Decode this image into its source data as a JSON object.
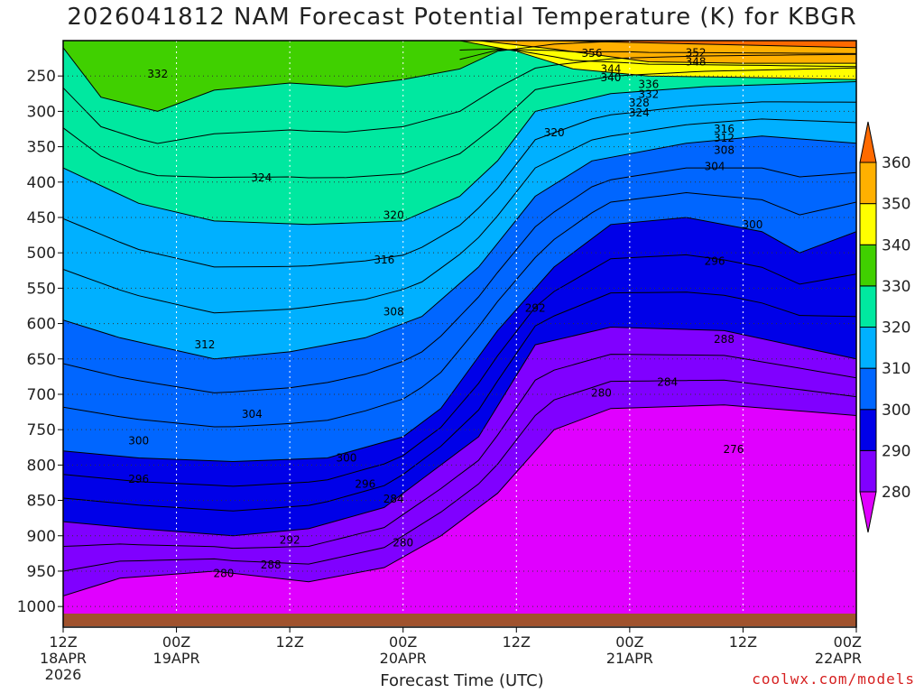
{
  "chart_data": {
    "type": "heatmap",
    "title": "2026041812 NAM Forecast Potential Temperature (K) for KBGR",
    "xlabel": "Forecast Time (UTC)",
    "ylabel": "",
    "x_ticks": [
      {
        "lines": [
          "12Z",
          "18APR",
          "2026"
        ]
      },
      {
        "lines": [
          "00Z",
          "19APR"
        ]
      },
      {
        "lines": [
          "12Z"
        ]
      },
      {
        "lines": [
          "00Z",
          "20APR"
        ]
      },
      {
        "lines": [
          "12Z"
        ]
      },
      {
        "lines": [
          "00Z",
          "21APR"
        ]
      },
      {
        "lines": [
          "12Z"
        ]
      },
      {
        "lines": [
          "00Z",
          "22APR"
        ]
      }
    ],
    "x_hours": [
      0,
      12,
      24,
      36,
      48,
      60,
      72,
      84
    ],
    "y_ticks": [
      250,
      300,
      350,
      400,
      450,
      500,
      550,
      600,
      650,
      700,
      750,
      800,
      850,
      900,
      950,
      1000
    ],
    "ylim": [
      1010,
      200
    ],
    "xlim_hours": [
      0,
      84
    ],
    "grid": true,
    "colorbar": {
      "levels": [
        280,
        290,
        300,
        310,
        320,
        330,
        340,
        350,
        360
      ],
      "colors": [
        "#e000ff",
        "#8000ff",
        "#0000e8",
        "#0066ff",
        "#00b0ff",
        "#00e8a0",
        "#40d000",
        "#ffff00",
        "#ffb000",
        "#ff6a00"
      ],
      "labels": [
        "280",
        "290",
        "300",
        "310",
        "320",
        "330",
        "340",
        "350",
        "360"
      ]
    },
    "isotherm_boundaries": [
      {
        "theta": 280,
        "points": [
          [
            0,
            985
          ],
          [
            6,
            960
          ],
          [
            16,
            950
          ],
          [
            26,
            965
          ],
          [
            34,
            945
          ],
          [
            36,
            930
          ],
          [
            40,
            900
          ],
          [
            46,
            840
          ],
          [
            52,
            750
          ],
          [
            58,
            720
          ],
          [
            70,
            715
          ],
          [
            84,
            730
          ]
        ]
      },
      {
        "theta": 290,
        "points": [
          [
            0,
            880
          ],
          [
            8,
            890
          ],
          [
            18,
            900
          ],
          [
            26,
            890
          ],
          [
            34,
            860
          ],
          [
            38,
            820
          ],
          [
            44,
            760
          ],
          [
            50,
            630
          ],
          [
            58,
            605
          ],
          [
            70,
            610
          ],
          [
            84,
            650
          ]
        ]
      },
      {
        "theta": 300,
        "points": [
          [
            0,
            780
          ],
          [
            8,
            790
          ],
          [
            18,
            795
          ],
          [
            28,
            790
          ],
          [
            36,
            760
          ],
          [
            40,
            720
          ],
          [
            46,
            610
          ],
          [
            52,
            520
          ],
          [
            58,
            460
          ],
          [
            66,
            450
          ],
          [
            74,
            470
          ],
          [
            78,
            500
          ],
          [
            84,
            470
          ]
        ]
      },
      {
        "theta": 310,
        "points": [
          [
            0,
            595
          ],
          [
            6,
            620
          ],
          [
            16,
            650
          ],
          [
            24,
            640
          ],
          [
            32,
            620
          ],
          [
            38,
            590
          ],
          [
            44,
            520
          ],
          [
            50,
            420
          ],
          [
            56,
            370
          ],
          [
            66,
            345
          ],
          [
            74,
            335
          ],
          [
            84,
            345
          ]
        ]
      },
      {
        "theta": 320,
        "points": [
          [
            0,
            380
          ],
          [
            8,
            430
          ],
          [
            16,
            455
          ],
          [
            26,
            460
          ],
          [
            36,
            455
          ],
          [
            42,
            420
          ],
          [
            46,
            370
          ],
          [
            50,
            300
          ],
          [
            58,
            275
          ],
          [
            68,
            265
          ],
          [
            84,
            258
          ]
        ]
      },
      {
        "theta": 330,
        "points": [
          [
            0,
            210
          ],
          [
            4,
            280
          ],
          [
            10,
            300
          ],
          [
            16,
            270
          ],
          [
            24,
            260
          ],
          [
            30,
            265
          ],
          [
            36,
            255
          ],
          [
            42,
            240
          ],
          [
            46,
            215
          ],
          [
            52,
            205
          ],
          [
            60,
            200
          ],
          [
            84,
            200
          ]
        ]
      },
      {
        "theta": 340,
        "points": [
          [
            42,
            200
          ],
          [
            48,
            215
          ],
          [
            54,
            240
          ],
          [
            62,
            250
          ],
          [
            72,
            252
          ],
          [
            84,
            255
          ]
        ]
      },
      {
        "theta": 350,
        "points": [
          [
            44,
            200
          ],
          [
            52,
            212
          ],
          [
            62,
            230
          ],
          [
            72,
            232
          ],
          [
            84,
            232
          ]
        ]
      },
      {
        "theta": 360,
        "points": [
          [
            52,
            200
          ],
          [
            84,
            210
          ]
        ]
      }
    ],
    "contour_labels": [
      {
        "text": "356",
        "hour": 56,
        "p": 218
      },
      {
        "text": "352",
        "hour": 67,
        "p": 217
      },
      {
        "text": "348",
        "hour": 67,
        "p": 230
      },
      {
        "text": "344",
        "hour": 58,
        "p": 240
      },
      {
        "text": "340",
        "hour": 58,
        "p": 252
      },
      {
        "text": "336",
        "hour": 62,
        "p": 262
      },
      {
        "text": "332",
        "hour": 62,
        "p": 276
      },
      {
        "text": "328",
        "hour": 61,
        "p": 288
      },
      {
        "text": "324",
        "hour": 61,
        "p": 302
      },
      {
        "text": "332",
        "hour": 10,
        "p": 247
      },
      {
        "text": "320",
        "hour": 52,
        "p": 330
      },
      {
        "text": "316",
        "hour": 70,
        "p": 325
      },
      {
        "text": "312",
        "hour": 70,
        "p": 338
      },
      {
        "text": "308",
        "hour": 70,
        "p": 355
      },
      {
        "text": "304",
        "hour": 69,
        "p": 378
      },
      {
        "text": "324",
        "hour": 21,
        "p": 394
      },
      {
        "text": "320",
        "hour": 35,
        "p": 447
      },
      {
        "text": "300",
        "hour": 73,
        "p": 460
      },
      {
        "text": "316",
        "hour": 34,
        "p": 510
      },
      {
        "text": "296",
        "hour": 69,
        "p": 512
      },
      {
        "text": "292",
        "hour": 50,
        "p": 578
      },
      {
        "text": "308",
        "hour": 35,
        "p": 583
      },
      {
        "text": "288",
        "hour": 70,
        "p": 622
      },
      {
        "text": "312",
        "hour": 15,
        "p": 630
      },
      {
        "text": "284",
        "hour": 64,
        "p": 683
      },
      {
        "text": "280",
        "hour": 57,
        "p": 698
      },
      {
        "text": "304",
        "hour": 20,
        "p": 728
      },
      {
        "text": "300",
        "hour": 8,
        "p": 766
      },
      {
        "text": "276",
        "hour": 71,
        "p": 778
      },
      {
        "text": "300",
        "hour": 30,
        "p": 790
      },
      {
        "text": "296",
        "hour": 8,
        "p": 820
      },
      {
        "text": "296",
        "hour": 32,
        "p": 827
      },
      {
        "text": "284",
        "hour": 35,
        "p": 848
      },
      {
        "text": "292",
        "hour": 24,
        "p": 906
      },
      {
        "text": "280",
        "hour": 36,
        "p": 910
      },
      {
        "text": "288",
        "hour": 22,
        "p": 941
      },
      {
        "text": "280",
        "hour": 17,
        "p": 953
      }
    ]
  },
  "credit": "coolwx.com/models"
}
